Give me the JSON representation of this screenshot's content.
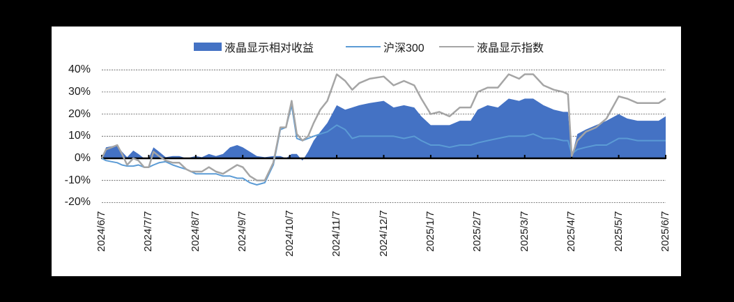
{
  "chart_data": {
    "type": "line",
    "title": "",
    "xlabel": "",
    "ylabel": "",
    "ylim": [
      -20,
      40
    ],
    "yticks": [
      "40%",
      "30%",
      "20%",
      "10%",
      "0%",
      "-10%",
      "-20%"
    ],
    "ytick_values": [
      40,
      30,
      20,
      10,
      0,
      -10,
      -20
    ],
    "xticks": [
      "2024/6/7",
      "2024/7/7",
      "2024/8/7",
      "2024/9/7",
      "2024/10/7",
      "2024/11/7",
      "2024/12/7",
      "2025/1/7",
      "2025/2/7",
      "2025/3/7",
      "2025/4/7",
      "2025/5/7",
      "2025/6/7"
    ],
    "grid": "horizontal dashed",
    "legend_position": "top",
    "legend": [
      {
        "label": "液晶显示相对收益",
        "kind": "area",
        "color": "#4472C4"
      },
      {
        "label": "沪深300",
        "kind": "line",
        "color": "#5B9BD5"
      },
      {
        "label": "液晶显示指数",
        "kind": "line",
        "color": "#A5A5A5"
      }
    ],
    "x_month_offset": [
      0,
      0.09,
      0.21,
      0.33,
      0.43,
      0.54,
      0.67,
      0.78,
      0.9,
      1.0,
      1.1,
      1.22,
      1.36,
      1.51,
      1.65,
      1.8,
      1.9,
      2.0,
      2.13,
      2.28,
      2.43,
      2.58,
      2.73,
      2.88,
      3.0,
      3.15,
      3.3,
      3.47,
      3.65,
      3.8,
      3.92,
      4.04,
      4.15,
      4.27,
      4.39,
      4.51,
      4.65,
      4.8,
      5.0,
      5.18,
      5.33,
      5.48,
      5.7,
      6.0,
      6.21,
      6.43,
      6.65,
      6.8,
      7.0,
      7.18,
      7.4,
      7.62,
      7.85,
      8.0,
      8.21,
      8.43,
      8.66,
      8.88,
      9.0,
      9.18,
      9.4,
      9.62,
      9.82,
      9.92,
      10.0,
      10.12,
      10.3,
      10.52,
      10.74,
      11.0,
      11.18,
      11.4,
      11.62,
      11.85,
      12.0
    ],
    "series": [
      {
        "name": "液晶显示相对收益",
        "type": "area",
        "values": [
          0,
          5,
          5.5,
          6,
          3,
          0.5,
          3.5,
          2,
          0,
          0,
          5,
          3,
          0.5,
          1,
          1,
          0,
          0.5,
          1,
          0.5,
          2,
          1,
          2,
          5,
          6,
          5,
          3,
          1,
          0.5,
          1,
          1,
          0,
          2,
          2,
          -1,
          3,
          8,
          12,
          16,
          24,
          22,
          23,
          24,
          25,
          26,
          23,
          24,
          23,
          19,
          15,
          15,
          15,
          17,
          17,
          22,
          24,
          23,
          27,
          26,
          27,
          27,
          24,
          22,
          21,
          21,
          1,
          11,
          13,
          15,
          17,
          20,
          18,
          17,
          17,
          17,
          19
        ]
      },
      {
        "name": "沪深300",
        "type": "line",
        "values": [
          0,
          -1,
          -1.5,
          -2,
          -3,
          -3.5,
          -3.5,
          -3,
          -4,
          -4,
          -3,
          -2,
          -1.5,
          -3,
          -4,
          -5,
          -6,
          -7,
          -7,
          -7,
          -7,
          -8,
          -8,
          -9,
          -9,
          -11,
          -12,
          -11,
          -3,
          13,
          14,
          24,
          9,
          8,
          9,
          10,
          11,
          12,
          15,
          13,
          9,
          10,
          10,
          10,
          10,
          9,
          10,
          8,
          6,
          6,
          5,
          6,
          6,
          7,
          8,
          9,
          10,
          10,
          10,
          11,
          9,
          9,
          8,
          8,
          2,
          4,
          5,
          6,
          6,
          9,
          9,
          8,
          8,
          8,
          8
        ]
      },
      {
        "name": "液晶显示指数",
        "type": "line",
        "values": [
          0,
          4,
          5,
          6,
          2,
          -3,
          0,
          -1,
          -4,
          -4,
          3,
          1,
          -1,
          -2,
          -2,
          -5,
          -6,
          -6,
          -6,
          -4,
          -6,
          -7,
          -5,
          -3,
          -4,
          -8,
          -10,
          -10,
          -2,
          14,
          14,
          26,
          11,
          8,
          10,
          16,
          22,
          26,
          38,
          35,
          31,
          34,
          36,
          37,
          33,
          35,
          33,
          27,
          20,
          21,
          19,
          23,
          23,
          30,
          32,
          32,
          38,
          36,
          38,
          38,
          33,
          31,
          30,
          29,
          1,
          8,
          12,
          14,
          18,
          28,
          27,
          25,
          25,
          25,
          27
        ]
      }
    ]
  }
}
